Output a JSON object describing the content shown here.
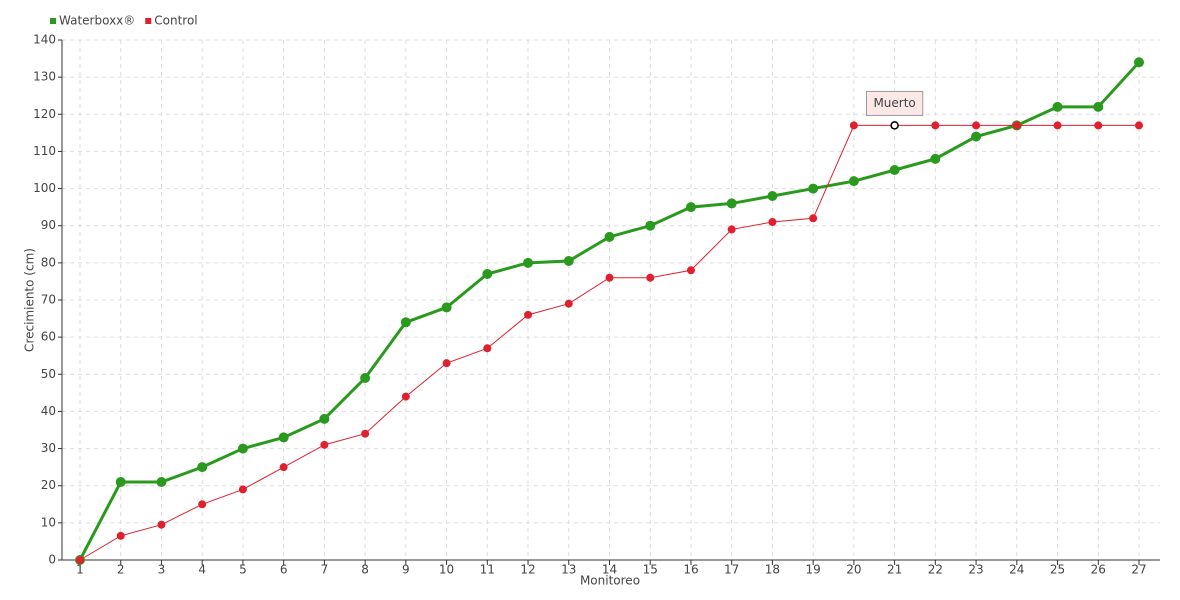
{
  "chart_data": {
    "type": "line",
    "xlabel": "Monitoreo",
    "ylabel": "Crecimiento (cm)",
    "categories": [
      "1",
      "2",
      "3",
      "4",
      "5",
      "6",
      "7",
      "8",
      "9",
      "10",
      "11",
      "12",
      "13",
      "14",
      "15",
      "16",
      "17",
      "18",
      "19",
      "20",
      "21",
      "22",
      "23",
      "24",
      "25",
      "26",
      "27"
    ],
    "series": [
      {
        "name": "Waterboxx®",
        "color": "#2a9a1e",
        "values": [
          0,
          21,
          21,
          25,
          30,
          33,
          38,
          49,
          64,
          68,
          77,
          80,
          80.5,
          87,
          90,
          95,
          96,
          98,
          100,
          102,
          105,
          108,
          114,
          117,
          122,
          122,
          134
        ]
      },
      {
        "name": "Control",
        "color": "#e0202e",
        "values": [
          0,
          6.5,
          9.5,
          15,
          19,
          25,
          31,
          34,
          44,
          53,
          57,
          66,
          69,
          76,
          76,
          78,
          89,
          91,
          92,
          117,
          117,
          117,
          117,
          117,
          117,
          117,
          117
        ]
      }
    ],
    "annotations": [
      {
        "text": "Muerto",
        "category": "21",
        "series": "Control"
      }
    ],
    "ylim": [
      0,
      140
    ],
    "yticks": [
      0,
      10,
      20,
      30,
      40,
      50,
      60,
      70,
      80,
      90,
      100,
      110,
      120,
      130,
      140
    ],
    "grid": true,
    "legend": "top-left"
  }
}
